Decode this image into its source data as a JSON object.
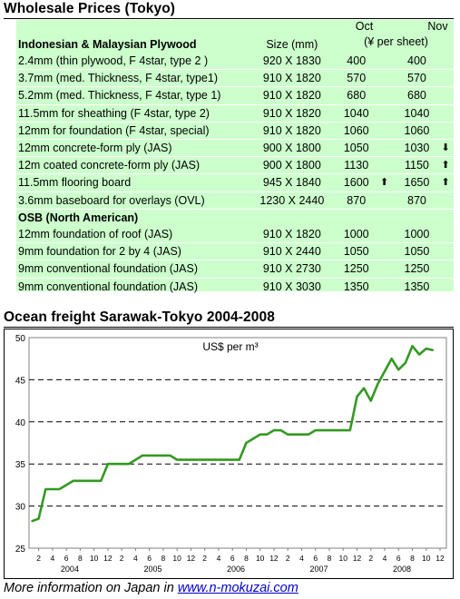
{
  "wholesale": {
    "title": "Wholesale Prices (Tokyo)",
    "header": {
      "category": "Indonesian & Malaysian Plywood",
      "size": "Size (mm)",
      "oct": "Oct",
      "nov": "Nov",
      "unit": "(¥ per sheet)"
    },
    "plywood_rows": [
      {
        "desc": "2.4mm  (thin plywood, F 4star, type 2 )",
        "size": "920 X 1830",
        "oct": "400",
        "oct_arrow": "",
        "nov": "400",
        "nov_arrow": ""
      },
      {
        "desc": "3.7mm  (med. Thickness,  F 4star, type1)",
        "size": "910 X 1820",
        "oct": "570",
        "oct_arrow": "",
        "nov": "570",
        "nov_arrow": ""
      },
      {
        "desc": "5.2mm  (med. Thickness, F 4star, type 1)",
        "size": "910 X 1820",
        "oct": "680",
        "oct_arrow": "",
        "nov": "680",
        "nov_arrow": ""
      },
      {
        "desc": "11.5mm  for sheathing (F 4star, type 2)",
        "size": "910 X 1820",
        "oct": "1040",
        "oct_arrow": "",
        "nov": "1040",
        "nov_arrow": ""
      },
      {
        "desc": "12mm for foundation (F 4star, special)",
        "size": "910 X 1820",
        "oct": "1060",
        "oct_arrow": "",
        "nov": "1060",
        "nov_arrow": ""
      },
      {
        "desc": "12mm concrete-form ply (JAS)",
        "size": "900 X 1800",
        "oct": "1050",
        "oct_arrow": "",
        "nov": "1030",
        "nov_arrow": "down"
      },
      {
        "desc": "12m coated concrete-form ply (JAS)",
        "size": "900 X 1800",
        "oct": "1130",
        "oct_arrow": "",
        "nov": "1150",
        "nov_arrow": "up"
      },
      {
        "desc": "11.5mm flooring board",
        "size": "945 X 1840",
        "oct": "1600",
        "oct_arrow": "up",
        "nov": "1650",
        "nov_arrow": "up"
      },
      {
        "desc": "3.6mm baseboard for overlays (OVL)",
        "size": "1230 X 2440",
        "oct": "870",
        "oct_arrow": "",
        "nov": "870",
        "nov_arrow": ""
      }
    ],
    "osb_category": "OSB (North American)",
    "osb_rows": [
      {
        "desc": "12mm foundation of roof (JAS)",
        "size": "910 X 1820",
        "oct": "1000",
        "nov": "1000"
      },
      {
        "desc": "9mm foundation for 2 by 4 (JAS)",
        "size": "910 X 2440",
        "oct": "1050",
        "nov": "1050"
      },
      {
        "desc": "9mm conventional foundation (JAS)",
        "size": "910 X 2730",
        "oct": "1250",
        "nov": "1250"
      },
      {
        "desc": "9mm conventional foundation (JAS)",
        "size": "910 X 3030",
        "oct": "1350",
        "nov": "1350"
      }
    ]
  },
  "freight": {
    "title": "Ocean freight Sarawak-Tokyo 2004-2008"
  },
  "chart_data": {
    "type": "line",
    "title": "",
    "annotation": "US$ per m³",
    "xlabel": "",
    "ylabel": "",
    "ylim": [
      25,
      50
    ],
    "yticks": [
      25,
      30,
      35,
      40,
      45,
      50
    ],
    "grid": "horizontal dashed",
    "color": "#339922",
    "month_tick_labels": [
      "2",
      "4",
      "6",
      "8",
      "10",
      "12",
      "2",
      "4",
      "6",
      "8",
      "10",
      "12",
      "2",
      "4",
      "6",
      "8",
      "10",
      "12",
      "2",
      "4",
      "6",
      "8",
      "10",
      "12",
      "2",
      "4",
      "6",
      "8",
      "10",
      "12"
    ],
    "year_labels": [
      "2004",
      "2005",
      "2006",
      "2007",
      "2008"
    ],
    "series": [
      {
        "x": [
          "2004-01",
          "2004-02",
          "2004-03",
          "2004-04",
          "2004-05",
          "2004-06",
          "2004-07",
          "2004-08",
          "2004-09",
          "2004-10",
          "2004-11",
          "2004-12",
          "2005-01",
          "2005-02",
          "2005-03",
          "2005-04",
          "2005-05",
          "2005-06",
          "2005-07",
          "2005-08",
          "2005-09",
          "2005-10",
          "2005-11",
          "2005-12",
          "2006-01",
          "2006-02",
          "2006-03",
          "2006-04",
          "2006-05",
          "2006-06",
          "2006-07",
          "2006-08",
          "2006-09",
          "2006-10",
          "2006-11",
          "2006-12",
          "2007-01",
          "2007-02",
          "2007-03",
          "2007-04",
          "2007-05",
          "2007-06",
          "2007-07",
          "2007-08",
          "2007-09",
          "2007-10",
          "2007-11",
          "2007-12",
          "2008-01",
          "2008-02",
          "2008-03",
          "2008-04",
          "2008-05",
          "2008-06",
          "2008-07",
          "2008-08",
          "2008-09",
          "2008-10",
          "2008-11"
        ],
        "values": [
          28.2,
          28.5,
          32,
          32,
          32,
          32.5,
          33,
          33,
          33,
          33,
          33,
          35,
          35,
          35,
          35,
          35.5,
          36,
          36,
          36,
          36,
          36,
          35.5,
          35.5,
          35.5,
          35.5,
          35.5,
          35.5,
          35.5,
          35.5,
          35.5,
          35.5,
          37.5,
          38,
          38.5,
          38.5,
          39,
          39,
          38.5,
          38.5,
          38.5,
          38.5,
          39,
          39,
          39,
          39,
          39,
          39,
          43,
          44,
          42.5,
          44.5,
          46,
          47.5,
          46.2,
          47,
          49,
          48,
          48.7,
          48.5
        ]
      }
    ]
  },
  "footer": {
    "text": "More information on Japan in ",
    "link": "www.n-mokuzai.com"
  }
}
